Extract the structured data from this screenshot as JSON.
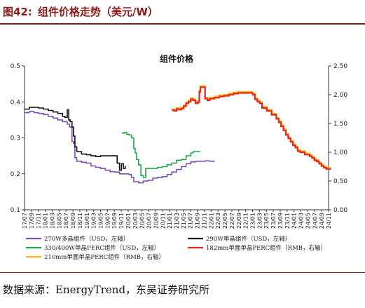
{
  "figure": {
    "number": "图42:",
    "caption": "组件价格走势（美元/W）",
    "source": "数据来源：EnergyTrend，东吴证券研究所"
  },
  "chart_data": {
    "type": "line",
    "title": "组件价格",
    "x_labels": [
      "17/07",
      "17/09",
      "17/11",
      "18/01",
      "18/03",
      "18/05",
      "18/07",
      "18/09",
      "18/11",
      "19/01",
      "19/03",
      "19/05",
      "19/07",
      "19/09",
      "19/11",
      "20/01",
      "20/03",
      "20/05",
      "20/07",
      "20/09",
      "20/11",
      "21/01",
      "21/03",
      "21/05",
      "21/07",
      "21/09",
      "21/11",
      "22/01",
      "22/03",
      "22/05",
      "22/07",
      "22/09",
      "22/11",
      "23/01",
      "23/03",
      "23/05",
      "23/07",
      "23/09",
      "23/11",
      "24/01",
      "24/03",
      "24/05",
      "24/07",
      "24/09",
      "24/11"
    ],
    "y_left": {
      "min": 0.1,
      "max": 0.5,
      "ticks": [
        "0.1",
        "0.2",
        "0.3",
        "0.4",
        "0.5"
      ]
    },
    "y_right": {
      "min": 0.0,
      "max": 2.5,
      "ticks": [
        "0.00",
        "0.50",
        "1.00",
        "1.50",
        "2.00",
        "2.50"
      ]
    },
    "series": [
      {
        "name": "270W多晶组件（USD，左轴）",
        "color": "#7B4FB5",
        "axis": "left",
        "points": [
          [
            0,
            0.37
          ],
          [
            1,
            0.373
          ],
          [
            2,
            0.37
          ],
          [
            3,
            0.368
          ],
          [
            4,
            0.365
          ],
          [
            5,
            0.36
          ],
          [
            6,
            0.355
          ],
          [
            7,
            0.35
          ],
          [
            8,
            0.345
          ],
          [
            9,
            0.338
          ],
          [
            9.5,
            0.33
          ],
          [
            10,
            0.29
          ],
          [
            10.3,
            0.285
          ],
          [
            10.6,
            0.245
          ],
          [
            11,
            0.235
          ],
          [
            12,
            0.232
          ],
          [
            13,
            0.23
          ],
          [
            14,
            0.222
          ],
          [
            15,
            0.218
          ],
          [
            16,
            0.215
          ],
          [
            17,
            0.21
          ],
          [
            18,
            0.206
          ],
          [
            19,
            0.205
          ],
          [
            20,
            0.2
          ],
          [
            21,
            0.2
          ],
          [
            22,
            0.198
          ],
          [
            22.5,
            0.19
          ],
          [
            23,
            0.178
          ],
          [
            24,
            0.175
          ],
          [
            25,
            0.18
          ],
          [
            26,
            0.182
          ],
          [
            27,
            0.188
          ],
          [
            28,
            0.19
          ],
          [
            29,
            0.192
          ],
          [
            30,
            0.198
          ],
          [
            31,
            0.205
          ],
          [
            32,
            0.212
          ],
          [
            33,
            0.22
          ],
          [
            34,
            0.228
          ],
          [
            35,
            0.233
          ],
          [
            36,
            0.235
          ],
          [
            37,
            0.235
          ],
          [
            38,
            0.236
          ],
          [
            39,
            0.235
          ],
          [
            40,
            0.235
          ]
        ]
      },
      {
        "name": "290W单晶组件（USD，左轴）",
        "color": "#111111",
        "axis": "left",
        "points": [
          [
            0,
            0.38
          ],
          [
            1,
            0.385
          ],
          [
            2,
            0.385
          ],
          [
            3,
            0.383
          ],
          [
            4,
            0.38
          ],
          [
            5,
            0.376
          ],
          [
            6,
            0.372
          ],
          [
            7,
            0.368
          ],
          [
            8,
            0.36
          ],
          [
            8.5,
            0.357
          ],
          [
            9,
            0.378
          ],
          [
            9.3,
            0.35
          ],
          [
            9.6,
            0.345
          ],
          [
            10,
            0.33
          ],
          [
            10.3,
            0.305
          ],
          [
            10.6,
            0.275
          ],
          [
            11,
            0.262
          ],
          [
            12,
            0.255
          ],
          [
            13,
            0.253
          ],
          [
            14,
            0.25
          ],
          [
            15,
            0.248
          ],
          [
            16,
            0.25
          ],
          [
            17,
            0.25
          ],
          [
            18,
            0.25
          ],
          [
            19,
            0.25
          ],
          [
            19.5,
            0.23
          ],
          [
            20,
            0.21
          ],
          [
            20.4,
            0.228
          ],
          [
            20.8,
            0.215
          ],
          [
            21.2,
            0.222
          ]
        ]
      },
      {
        "name": "330/400W单晶PERC组件（USD，左轴）",
        "color": "#22A84A",
        "axis": "left",
        "points": [
          [
            20.5,
            0.313
          ],
          [
            21,
            0.315
          ],
          [
            21.5,
            0.31
          ],
          [
            22,
            0.308
          ],
          [
            22.5,
            0.3
          ],
          [
            23,
            0.27
          ],
          [
            23.3,
            0.258
          ],
          [
            23.6,
            0.24
          ],
          [
            24,
            0.225
          ],
          [
            24.5,
            0.195
          ],
          [
            25,
            0.19
          ],
          [
            25.5,
            0.215
          ],
          [
            26,
            0.215
          ],
          [
            27,
            0.215
          ],
          [
            28,
            0.218
          ],
          [
            29,
            0.22
          ],
          [
            30,
            0.225
          ],
          [
            31,
            0.23
          ],
          [
            32,
            0.238
          ],
          [
            33,
            0.24
          ],
          [
            34,
            0.25
          ],
          [
            35,
            0.258
          ],
          [
            35.5,
            0.262
          ],
          [
            36,
            0.262
          ],
          [
            37,
            0.262
          ]
        ]
      },
      {
        "name": "182mm单面单晶PERC组件（RMB，右轴）",
        "color": "#E8261A",
        "axis": "right",
        "points": [
          [
            31,
            1.73
          ],
          [
            31.5,
            1.72
          ],
          [
            32,
            1.75
          ],
          [
            32.5,
            1.74
          ],
          [
            33,
            1.76
          ],
          [
            33.5,
            1.8
          ],
          [
            34,
            1.85
          ],
          [
            34.5,
            1.88
          ],
          [
            35,
            1.92
          ],
          [
            35.5,
            1.9
          ],
          [
            36,
            1.85
          ],
          [
            36.5,
            1.87
          ],
          [
            36.8,
            2.05
          ],
          [
            37,
            2.13
          ],
          [
            37.5,
            2.13
          ],
          [
            38,
            1.93
          ],
          [
            38.5,
            1.9
          ],
          [
            39,
            1.93
          ],
          [
            40,
            1.95
          ],
          [
            41,
            1.97
          ],
          [
            42,
            1.98
          ],
          [
            43,
            2.0
          ],
          [
            44,
            2.02
          ],
          [
            45,
            2.03
          ],
          [
            46,
            2.03
          ],
          [
            47,
            2.03
          ],
          [
            48,
            2.0
          ],
          [
            48.5,
            1.92
          ],
          [
            49,
            1.88
          ],
          [
            49.5,
            1.85
          ],
          [
            50,
            1.77
          ],
          [
            51,
            1.72
          ],
          [
            52,
            1.65
          ],
          [
            53,
            1.58
          ],
          [
            53.5,
            1.52
          ],
          [
            54,
            1.45
          ],
          [
            54.5,
            1.38
          ],
          [
            55,
            1.3
          ],
          [
            55.5,
            1.24
          ],
          [
            56,
            1.18
          ],
          [
            56.5,
            1.12
          ],
          [
            57,
            1.08
          ],
          [
            57.5,
            1.02
          ],
          [
            58,
            1.0
          ],
          [
            59,
            0.96
          ],
          [
            60,
            0.93
          ],
          [
            60.5,
            0.9
          ],
          [
            61,
            0.86
          ],
          [
            61.5,
            0.84
          ],
          [
            62,
            0.8
          ],
          [
            62.5,
            0.76
          ],
          [
            63,
            0.73
          ],
          [
            63.5,
            0.71
          ],
          [
            64,
            0.71
          ],
          [
            64.5,
            0.71
          ]
        ]
      },
      {
        "name": "210mm单面单晶PERC组件（RMB，右轴）",
        "color": "#F2B61C",
        "axis": "right",
        "points": [
          [
            31,
            1.75
          ],
          [
            31.5,
            1.74
          ],
          [
            32,
            1.77
          ],
          [
            32.5,
            1.76
          ],
          [
            33,
            1.78
          ],
          [
            33.5,
            1.82
          ],
          [
            34,
            1.87
          ],
          [
            34.5,
            1.9
          ],
          [
            35,
            1.94
          ],
          [
            35.5,
            1.92
          ],
          [
            36,
            1.87
          ],
          [
            36.5,
            1.89
          ],
          [
            36.8,
            2.07
          ],
          [
            37,
            2.15
          ],
          [
            37.5,
            2.15
          ],
          [
            38,
            1.95
          ],
          [
            38.5,
            1.92
          ],
          [
            39,
            1.95
          ],
          [
            40,
            1.97
          ],
          [
            41,
            1.99
          ],
          [
            42,
            2.0
          ],
          [
            43,
            2.02
          ],
          [
            44,
            2.04
          ],
          [
            45,
            2.05
          ],
          [
            46,
            2.05
          ],
          [
            47,
            2.05
          ],
          [
            48,
            2.02
          ],
          [
            48.5,
            1.94
          ],
          [
            49,
            1.9
          ],
          [
            49.5,
            1.87
          ],
          [
            50,
            1.79
          ],
          [
            51,
            1.74
          ],
          [
            52,
            1.67
          ],
          [
            53,
            1.6
          ],
          [
            53.5,
            1.54
          ],
          [
            54,
            1.47
          ],
          [
            54.5,
            1.4
          ],
          [
            55,
            1.32
          ],
          [
            55.5,
            1.26
          ],
          [
            56,
            1.2
          ],
          [
            56.5,
            1.14
          ],
          [
            57,
            1.1
          ],
          [
            57.5,
            1.04
          ],
          [
            58,
            1.02
          ],
          [
            59,
            0.98
          ],
          [
            60,
            0.95
          ],
          [
            60.5,
            0.92
          ],
          [
            61,
            0.88
          ],
          [
            61.5,
            0.86
          ],
          [
            62,
            0.82
          ],
          [
            62.5,
            0.78
          ],
          [
            63,
            0.75
          ],
          [
            63.5,
            0.73
          ],
          [
            64,
            0.73
          ],
          [
            64.5,
            0.73
          ]
        ]
      }
    ],
    "legend": [
      "270W多晶组件（USD，左轴）",
      "290W单晶组件（USD，左轴）",
      "330/400W单晶PERC组件（USD，左轴）",
      "182mm单面单晶PERC组件（RMB，右轴）",
      "210mm单面单晶PERC组件（RMB，右轴）"
    ]
  }
}
